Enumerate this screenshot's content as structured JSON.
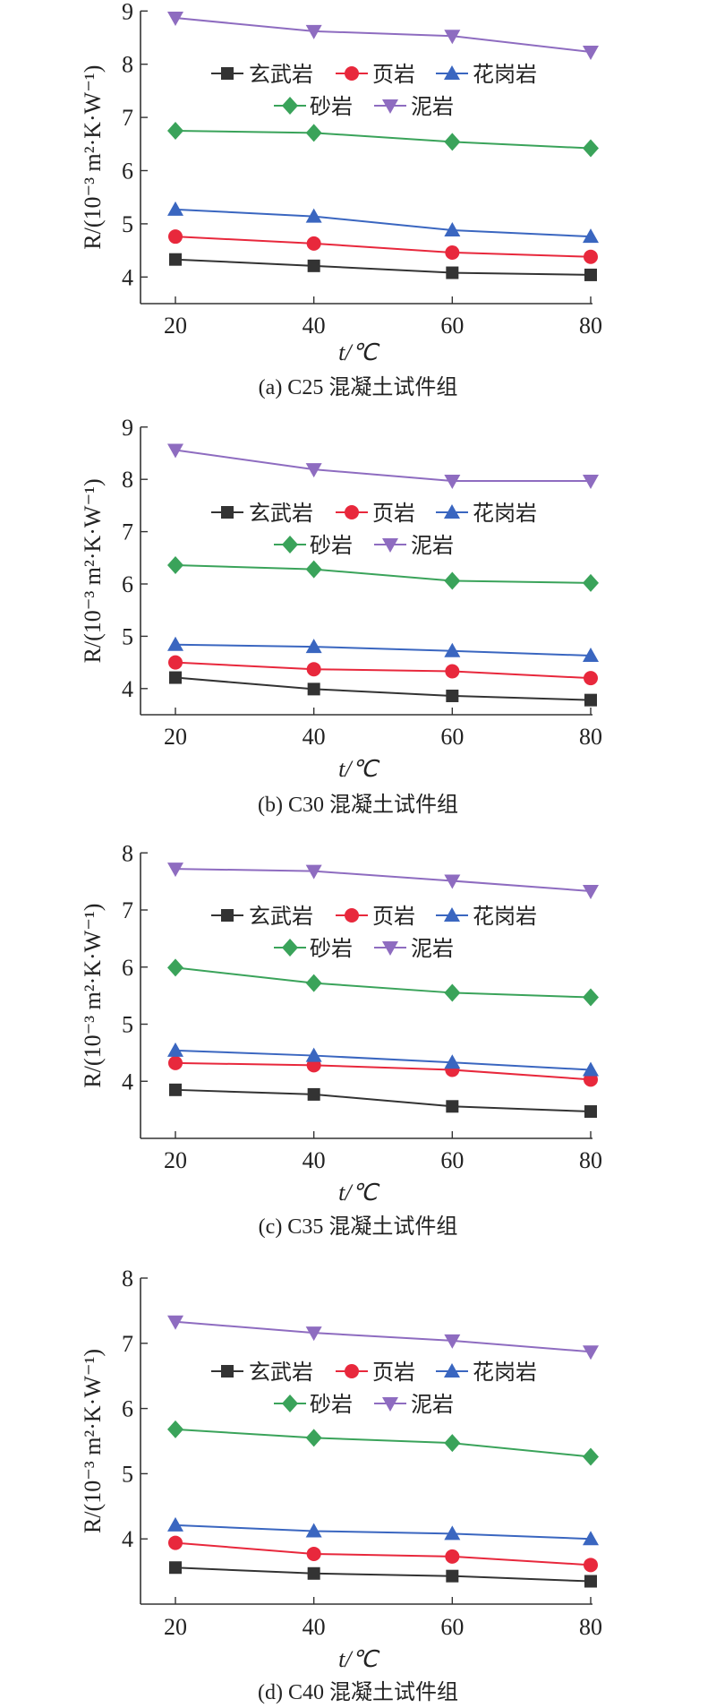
{
  "chart_data": [
    {
      "type": "line",
      "title": "(a) C25 混凝土试件组",
      "xlabel": "t/℃",
      "ylabel": "R/(10⁻³ m²·K·W⁻¹)",
      "x": [
        20,
        40,
        60,
        80
      ],
      "xticks": [
        "20",
        "40",
        "60",
        "80"
      ],
      "ylim": [
        3.5,
        9
      ],
      "yticks": [
        "4",
        "5",
        "6",
        "7",
        "8",
        "9"
      ],
      "legend_position": "top-center",
      "series": [
        {
          "name": "玄武岩",
          "marker": "square",
          "color": "#333333",
          "values": [
            4.33,
            4.21,
            4.08,
            4.04
          ]
        },
        {
          "name": "页岩",
          "marker": "circle",
          "color": "#e8283c",
          "values": [
            4.76,
            4.63,
            4.46,
            4.38
          ]
        },
        {
          "name": "花岗岩",
          "marker": "triangle-up",
          "color": "#3a66c0",
          "values": [
            5.27,
            5.14,
            4.88,
            4.76
          ]
        },
        {
          "name": "砂岩",
          "marker": "diamond",
          "color": "#3aa35a",
          "values": [
            6.75,
            6.71,
            6.54,
            6.42
          ]
        },
        {
          "name": "泥岩",
          "marker": "triangle-down",
          "color": "#8e6cc0",
          "values": [
            8.87,
            8.62,
            8.53,
            8.23
          ]
        }
      ]
    },
    {
      "type": "line",
      "title": "(b) C30 混凝土试件组",
      "xlabel": "t/℃",
      "ylabel": "R/(10⁻³ m²·K·W⁻¹)",
      "x": [
        20,
        40,
        60,
        80
      ],
      "xticks": [
        "20",
        "40",
        "60",
        "80"
      ],
      "ylim": [
        3.5,
        9
      ],
      "yticks": [
        "4",
        "5",
        "6",
        "7",
        "8",
        "9"
      ],
      "legend_position": "top-center",
      "series": [
        {
          "name": "玄武岩",
          "marker": "square",
          "color": "#333333",
          "values": [
            4.21,
            3.99,
            3.86,
            3.78
          ]
        },
        {
          "name": "页岩",
          "marker": "circle",
          "color": "#e8283c",
          "values": [
            4.5,
            4.37,
            4.33,
            4.2
          ]
        },
        {
          "name": "花岗岩",
          "marker": "triangle-up",
          "color": "#3a66c0",
          "values": [
            4.84,
            4.8,
            4.72,
            4.63
          ]
        },
        {
          "name": "砂岩",
          "marker": "diamond",
          "color": "#3aa35a",
          "values": [
            6.36,
            6.28,
            6.06,
            6.02
          ]
        },
        {
          "name": "泥岩",
          "marker": "triangle-down",
          "color": "#8e6cc0",
          "values": [
            8.56,
            8.19,
            7.97,
            7.97
          ]
        }
      ]
    },
    {
      "type": "line",
      "title": "(c) C35 混凝土试件组",
      "xlabel": "t/℃",
      "ylabel": "R/(10⁻³ m²·K·W⁻¹)",
      "x": [
        20,
        40,
        60,
        80
      ],
      "xticks": [
        "20",
        "40",
        "60",
        "80"
      ],
      "ylim": [
        3,
        8
      ],
      "yticks": [
        "4",
        "5",
        "6",
        "7",
        "8"
      ],
      "legend_position": "top-center",
      "series": [
        {
          "name": "玄武岩",
          "marker": "square",
          "color": "#333333",
          "values": [
            3.85,
            3.77,
            3.56,
            3.47
          ]
        },
        {
          "name": "页岩",
          "marker": "circle",
          "color": "#e8283c",
          "values": [
            4.32,
            4.28,
            4.2,
            4.03
          ]
        },
        {
          "name": "花岗岩",
          "marker": "triangle-up",
          "color": "#3a66c0",
          "values": [
            4.54,
            4.45,
            4.33,
            4.2
          ]
        },
        {
          "name": "砂岩",
          "marker": "diamond",
          "color": "#3aa35a",
          "values": [
            5.99,
            5.72,
            5.55,
            5.47
          ]
        },
        {
          "name": "泥岩",
          "marker": "triangle-down",
          "color": "#8e6cc0",
          "values": [
            7.72,
            7.68,
            7.51,
            7.33
          ]
        }
      ]
    },
    {
      "type": "line",
      "title": "(d) C40 混凝土试件组",
      "xlabel": "t/℃",
      "ylabel": "R/(10⁻³ m²·K·W⁻¹)",
      "x": [
        20,
        40,
        60,
        80
      ],
      "xticks": [
        "20",
        "40",
        "60",
        "80"
      ],
      "ylim": [
        3,
        8
      ],
      "yticks": [
        "4",
        "5",
        "6",
        "7",
        "8"
      ],
      "legend_position": "top-center",
      "series": [
        {
          "name": "玄武岩",
          "marker": "square",
          "color": "#333333",
          "values": [
            3.56,
            3.47,
            3.43,
            3.35
          ]
        },
        {
          "name": "页岩",
          "marker": "circle",
          "color": "#e8283c",
          "values": [
            3.94,
            3.77,
            3.73,
            3.6
          ]
        },
        {
          "name": "花岗岩",
          "marker": "triangle-up",
          "color": "#3a66c0",
          "values": [
            4.21,
            4.12,
            4.08,
            4.0
          ]
        },
        {
          "name": "砂岩",
          "marker": "diamond",
          "color": "#3aa35a",
          "values": [
            5.68,
            5.55,
            5.47,
            5.26
          ]
        },
        {
          "name": "泥岩",
          "marker": "triangle-down",
          "color": "#8e6cc0",
          "values": [
            7.33,
            7.16,
            7.04,
            6.87
          ]
        }
      ]
    }
  ]
}
